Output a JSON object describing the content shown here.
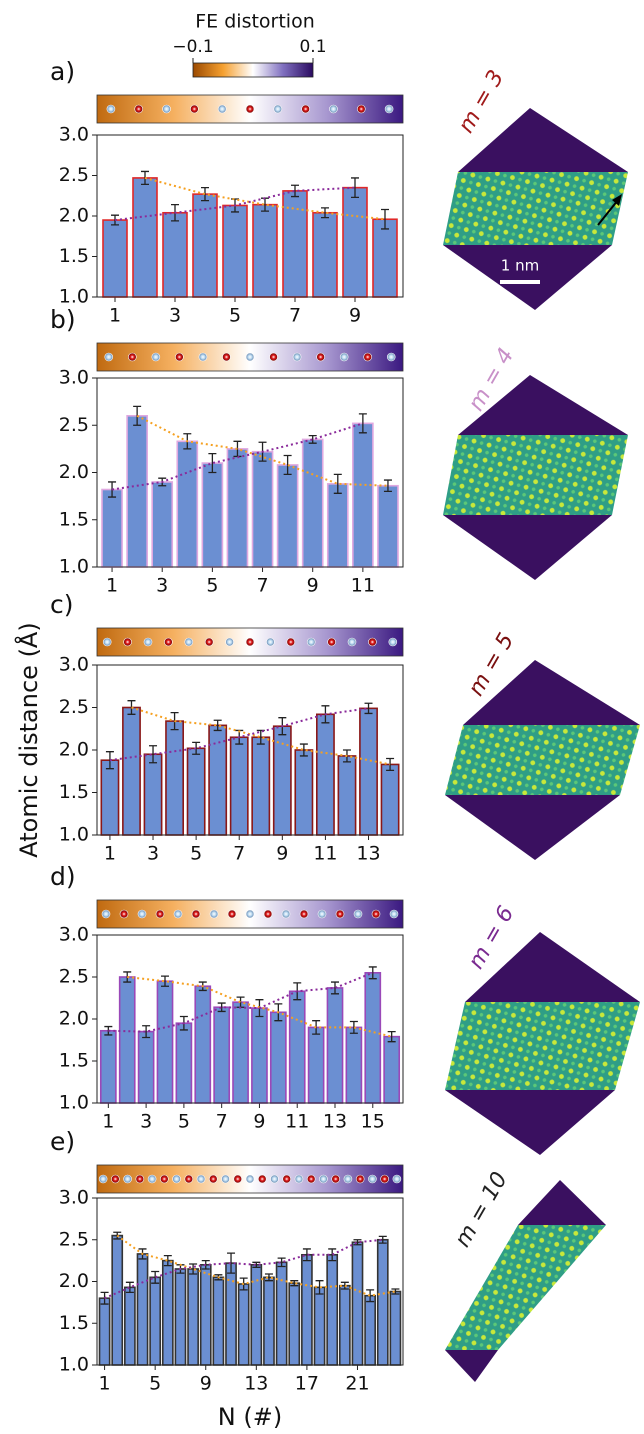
{
  "figure": {
    "ylabel": "Atomic distance (Å)",
    "xlabel": "N (#)",
    "colorbar": {
      "title": "FE distortion",
      "lim": [
        -0.1,
        0.1
      ],
      "ticks": [
        {
          "value": -0.1,
          "label": "−0.1"
        },
        0.1
      ],
      "colors": [
        "#9c4a00",
        "#f5a030",
        "#ffffff",
        "#8070c0",
        "#2a0a60"
      ]
    },
    "scale_label": "1 nm"
  },
  "chart_data": [
    {
      "type": "bar",
      "label": "a)",
      "structure_label": "m = 3",
      "structure_color": "#a01a1a",
      "edge_color": "#e02828",
      "color": "#6b8fd2",
      "x": [
        1,
        2,
        3,
        4,
        5,
        6,
        7,
        8,
        9,
        10
      ],
      "values": [
        1.95,
        2.47,
        2.04,
        2.27,
        2.13,
        2.14,
        2.31,
        2.04,
        2.35,
        1.96
      ],
      "errors": [
        0.06,
        0.08,
        0.1,
        0.08,
        0.08,
        0.08,
        0.07,
        0.06,
        0.12,
        0.12
      ],
      "xlim": [
        0.4,
        10.6
      ],
      "xticks": [
        1,
        3,
        5,
        7,
        9
      ],
      "ylim": [
        1,
        3
      ],
      "yticks": [
        {
          "value": 1,
          "label": "1.0"
        },
        1.5,
        {
          "value": 2,
          "label": "2.0"
        },
        2.5,
        {
          "value": 3,
          "label": "3.0"
        }
      ],
      "trend_colors": [
        "#f5a020",
        "#8a2a9a"
      ]
    },
    {
      "type": "bar",
      "label": "b)",
      "structure_label": "m = 4",
      "structure_color": "#c890c8",
      "edge_color": "#e0a8e0",
      "color": "#6b8fd2",
      "x": [
        1,
        2,
        3,
        4,
        5,
        6,
        7,
        8,
        9,
        10,
        11,
        12
      ],
      "values": [
        1.82,
        2.6,
        1.9,
        2.33,
        2.1,
        2.25,
        2.22,
        2.08,
        2.35,
        1.88,
        2.52,
        1.86
      ],
      "errors": [
        0.08,
        0.1,
        0.04,
        0.08,
        0.1,
        0.08,
        0.1,
        0.1,
        0.04,
        0.1,
        0.1,
        0.06
      ],
      "xlim": [
        0.4,
        12.6
      ],
      "xticks": [
        1,
        3,
        5,
        7,
        9,
        11
      ],
      "ylim": [
        1,
        3
      ],
      "yticks": [
        {
          "value": 1,
          "label": "1.0"
        },
        1.5,
        {
          "value": 2,
          "label": "2.0"
        },
        2.5,
        {
          "value": 3,
          "label": "3.0"
        }
      ],
      "trend_colors": [
        "#f5a020",
        "#8a2a9a"
      ]
    },
    {
      "type": "bar",
      "label": "c)",
      "structure_label": "m = 5",
      "structure_color": "#7a1010",
      "edge_color": "#8a1818",
      "color": "#6b8fd2",
      "x": [
        1,
        2,
        3,
        4,
        5,
        6,
        7,
        8,
        9,
        10,
        11,
        12,
        13,
        14
      ],
      "values": [
        1.88,
        2.5,
        1.95,
        2.34,
        2.02,
        2.29,
        2.15,
        2.15,
        2.28,
        2.0,
        2.42,
        1.93,
        2.49,
        1.83
      ],
      "errors": [
        0.1,
        0.08,
        0.1,
        0.1,
        0.07,
        0.06,
        0.08,
        0.08,
        0.1,
        0.07,
        0.1,
        0.07,
        0.06,
        0.07
      ],
      "xlim": [
        0.4,
        14.6
      ],
      "xticks": [
        1,
        3,
        5,
        7,
        9,
        11,
        13
      ],
      "ylim": [
        1,
        3
      ],
      "yticks": [
        {
          "value": 1,
          "label": "1.0"
        },
        1.5,
        {
          "value": 2,
          "label": "2.0"
        },
        2.5,
        {
          "value": 3,
          "label": "3.0"
        }
      ],
      "trend_colors": [
        "#f5a020",
        "#8a2a9a"
      ]
    },
    {
      "type": "bar",
      "label": "d)",
      "structure_label": "m = 6",
      "structure_color": "#7a2a90",
      "edge_color": "#9a48b8",
      "color": "#6b8fd2",
      "x": [
        1,
        2,
        3,
        4,
        5,
        6,
        7,
        8,
        9,
        10,
        11,
        12,
        13,
        14,
        15,
        16
      ],
      "values": [
        1.86,
        2.5,
        1.85,
        2.45,
        1.95,
        2.39,
        2.14,
        2.2,
        2.13,
        2.08,
        2.33,
        1.9,
        2.37,
        1.9,
        2.55,
        1.79
      ],
      "errors": [
        0.05,
        0.06,
        0.07,
        0.06,
        0.08,
        0.05,
        0.05,
        0.06,
        0.1,
        0.1,
        0.1,
        0.08,
        0.07,
        0.07,
        0.07,
        0.06
      ],
      "xlim": [
        0.4,
        16.6
      ],
      "xticks": [
        1,
        3,
        5,
        7,
        9,
        11,
        13,
        15
      ],
      "ylim": [
        1,
        3
      ],
      "yticks": [
        {
          "value": 1,
          "label": "1.0"
        },
        1.5,
        {
          "value": 2,
          "label": "2.0"
        },
        2.5,
        {
          "value": 3,
          "label": "3.0"
        }
      ],
      "trend_colors": [
        "#f5a020",
        "#8a2a9a"
      ]
    },
    {
      "type": "bar",
      "label": "e)",
      "structure_label": "m = 10",
      "structure_color": "#222222",
      "edge_color": "#333333",
      "color": "#6b8fd2",
      "x": [
        1,
        2,
        3,
        4,
        5,
        6,
        7,
        8,
        9,
        10,
        11,
        12,
        13,
        14,
        15,
        16,
        17,
        18,
        19,
        20,
        21,
        22,
        23,
        24
      ],
      "values": [
        1.8,
        2.55,
        1.93,
        2.33,
        2.05,
        2.25,
        2.15,
        2.15,
        2.2,
        2.05,
        2.22,
        1.97,
        2.2,
        2.05,
        2.23,
        1.98,
        2.32,
        1.93,
        2.32,
        1.95,
        2.47,
        1.83,
        2.5,
        1.88
      ],
      "errors": [
        0.07,
        0.04,
        0.06,
        0.06,
        0.07,
        0.06,
        0.05,
        0.06,
        0.05,
        0.03,
        0.12,
        0.07,
        0.03,
        0.04,
        0.05,
        0.03,
        0.07,
        0.08,
        0.07,
        0.04,
        0.03,
        0.07,
        0.04,
        0.03
      ],
      "xlim": [
        0.4,
        24.6
      ],
      "xticks": [
        1,
        5,
        9,
        13,
        17,
        21
      ],
      "ylim": [
        1,
        3
      ],
      "yticks": [
        {
          "value": 1,
          "label": "1.0"
        },
        1.5,
        {
          "value": 2,
          "label": "2.0"
        },
        2.5,
        {
          "value": 3,
          "label": "3.0"
        }
      ],
      "trend_colors": [
        "#f5a020",
        "#8a2a9a"
      ]
    }
  ]
}
